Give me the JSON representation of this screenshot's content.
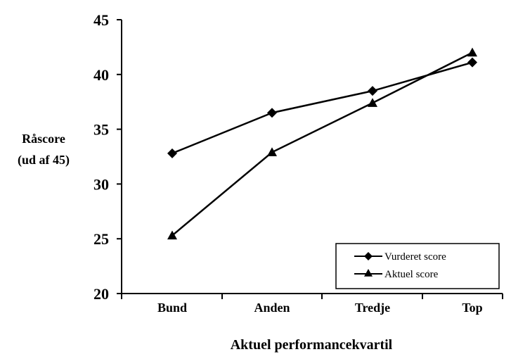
{
  "chart_data": {
    "type": "line",
    "categories": [
      "Bund",
      "Anden",
      "Tredje",
      "Top"
    ],
    "ylim": [
      20,
      45
    ],
    "yticks": [
      "20",
      "25",
      "30",
      "35",
      "40",
      "45"
    ],
    "ylabel_lines": [
      "Råscore",
      "(ud af 45)"
    ],
    "xlabel": "Aktuel performancekvartil",
    "legend_position": "bottom-right",
    "grid": false,
    "series": [
      {
        "name": "Vurderet score",
        "marker": "diamond",
        "values": [
          32.8,
          36.5,
          38.5,
          41.1
        ]
      },
      {
        "name": "Aktuel score",
        "marker": "triangle",
        "values": [
          25.3,
          32.9,
          37.4,
          42.0
        ]
      }
    ]
  }
}
